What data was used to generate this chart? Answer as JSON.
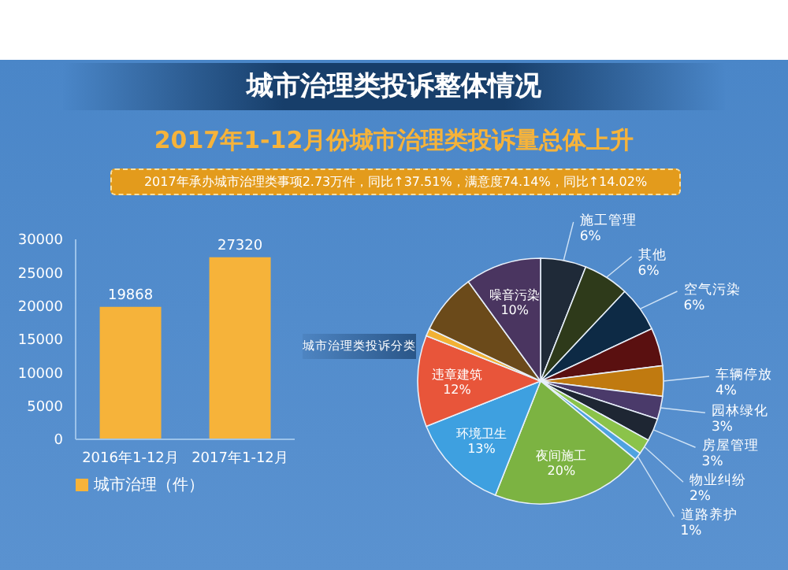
{
  "chart_data": [
    {
      "type": "other",
      "title": "城市治理类投诉整体情况",
      "subtitle": "2017年1-12月份城市治理类投诉量总体上升",
      "annotations": [
        "2017年承办城市治理类事项2.73万件，同比↑37.51%，满意度74.14%，同比↑14.02%"
      ]
    },
    {
      "type": "bar",
      "categories": [
        "2016年1-12月",
        "2017年1-12月"
      ],
      "series": [
        {
          "name": "城市治理（件）",
          "color": "#f6b33a",
          "values": [
            19868,
            27320
          ]
        }
      ],
      "ylim": [
        0,
        30000
      ],
      "yticks": [
        0,
        5000,
        10000,
        15000,
        20000,
        25000,
        30000
      ],
      "data_labels": true,
      "legend": "bottom"
    },
    {
      "type": "pie",
      "title": "城市治理类投诉分类",
      "categories": [
        "施工管理",
        "其他",
        "空气污染",
        null,
        "车辆停放",
        "园林绿化",
        "房屋管理",
        "物业纠纷",
        "道路养护",
        "夜间施工",
        "环境卫生",
        "违章建筑",
        null,
        null,
        "噪音污染"
      ],
      "values": [
        6,
        6,
        6,
        5,
        4,
        3,
        3,
        2,
        1,
        20,
        13,
        12,
        1,
        8,
        10
      ],
      "value_labels": [
        "6%",
        "6%",
        "6%",
        null,
        "4%",
        "3%",
        "3%",
        "2%",
        "1%",
        "20%",
        "13%",
        "12%",
        null,
        null,
        "10%"
      ],
      "colors": [
        "#1f2a38",
        "#2e3a1a",
        "#0d2a45",
        "#5a1010",
        "#c07a10",
        "#4a3a6a",
        "#1e2633",
        "#8bc34a",
        "#4fa3e0",
        "#7cb342",
        "#3ea0e0",
        "#e8553a",
        "#f2b134",
        "#6b4a1a",
        "#4a3560"
      ]
    }
  ]
}
